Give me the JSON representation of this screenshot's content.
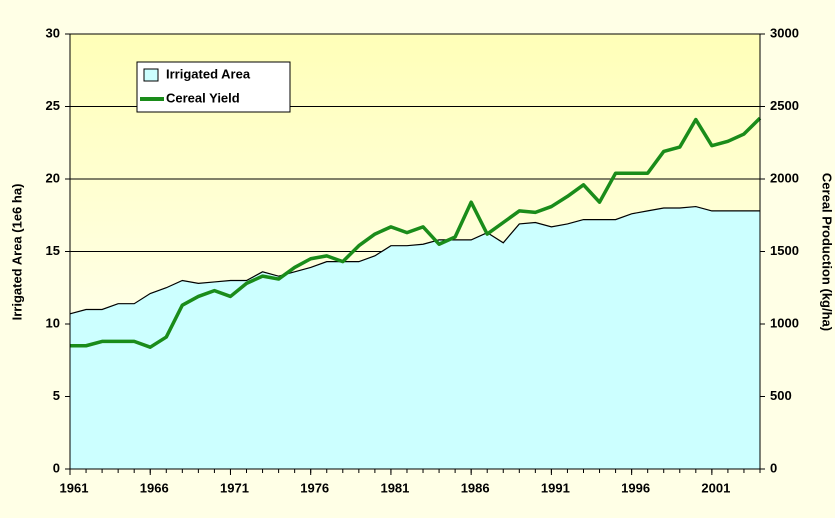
{
  "chart_data": {
    "type": "area-line",
    "x": [
      1961,
      1962,
      1963,
      1964,
      1965,
      1966,
      1967,
      1968,
      1969,
      1970,
      1971,
      1972,
      1973,
      1974,
      1975,
      1976,
      1977,
      1978,
      1979,
      1980,
      1981,
      1982,
      1983,
      1984,
      1985,
      1986,
      1987,
      1988,
      1989,
      1990,
      1991,
      1992,
      1993,
      1994,
      1995,
      1996,
      1997,
      1998,
      1999,
      2000,
      2001,
      2002,
      2003,
      2004
    ],
    "xlim": [
      1961,
      2004
    ],
    "xticks": [
      1961,
      1966,
      1971,
      1976,
      1981,
      1986,
      1991,
      1996,
      2001
    ],
    "ylabel": "Irrigated Area (1e6 ha)",
    "y2label": "Cereal Production (kg/ha)",
    "ylim": [
      0,
      30
    ],
    "yticks": [
      0,
      5,
      10,
      15,
      20,
      25,
      30
    ],
    "y2lim": [
      0,
      3000
    ],
    "y2ticks": [
      0,
      500,
      1000,
      1500,
      2000,
      2500,
      3000
    ],
    "grid": true,
    "legend": "upper left",
    "series": [
      {
        "name": "Irrigated Area",
        "kind": "area",
        "color": "#ccffff",
        "values": [
          10.7,
          11.0,
          11.0,
          11.4,
          11.4,
          12.1,
          12.5,
          13.0,
          12.8,
          12.9,
          13.0,
          13.0,
          13.6,
          13.3,
          13.6,
          13.9,
          14.3,
          14.3,
          14.3,
          14.7,
          15.4,
          15.4,
          15.5,
          15.8,
          15.8,
          15.8,
          16.3,
          15.6,
          16.9,
          17.0,
          16.7,
          16.9,
          17.2,
          17.2,
          17.2,
          17.6,
          17.8,
          18.0,
          18.0,
          18.1,
          17.8,
          17.8,
          17.8,
          17.8
        ]
      },
      {
        "name": "Cereal Yield",
        "kind": "line",
        "axis": "y2",
        "color": "#1a8c1a",
        "values": [
          850,
          850,
          880,
          880,
          880,
          840,
          910,
          1130,
          1190,
          1230,
          1190,
          1280,
          1330,
          1310,
          1390,
          1450,
          1470,
          1430,
          1540,
          1620,
          1670,
          1630,
          1670,
          1550,
          1600,
          1840,
          1620,
          1700,
          1780,
          1770,
          1810,
          1880,
          1960,
          1840,
          2040,
          2040,
          2040,
          2190,
          2220,
          2410,
          2230,
          2260,
          2310,
          2420
        ]
      }
    ]
  }
}
